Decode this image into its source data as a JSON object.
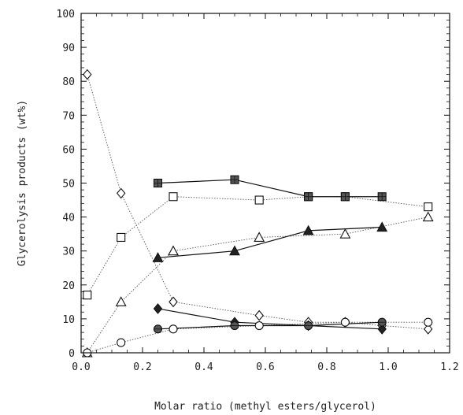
{
  "chart_data": {
    "type": "line",
    "title": "",
    "xlabel": "Molar ratio (methyl esters/glycerol)",
    "ylabel": "Glycerolysis products (wt%)",
    "xlim": [
      0.0,
      1.2
    ],
    "ylim": [
      0,
      100
    ],
    "x_ticks": [
      "0.0",
      "0.2",
      "0.4",
      "0.6",
      "0.8",
      "1.0",
      "1.2"
    ],
    "y_ticks": [
      "0",
      "10",
      "20",
      "30",
      "40",
      "50",
      "60",
      "70",
      "80",
      "90",
      "100"
    ],
    "legend": "none",
    "grid": false,
    "series": [
      {
        "marker": "diamond-open",
        "line": "dotted",
        "x": [
          0.02,
          0.13,
          0.3,
          0.58,
          0.74,
          0.86,
          0.98,
          1.13
        ],
        "y": [
          82,
          47,
          15,
          11,
          9,
          9,
          8,
          7
        ]
      },
      {
        "marker": "square-open",
        "line": "dotted",
        "x": [
          0.02,
          0.13,
          0.3,
          0.58,
          0.74,
          0.86,
          1.13
        ],
        "y": [
          17,
          34,
          46,
          45,
          46,
          46,
          43
        ]
      },
      {
        "marker": "triangle-open",
        "line": "dotted",
        "x": [
          0.02,
          0.13,
          0.3,
          0.58,
          0.86,
          1.13
        ],
        "y": [
          0,
          15,
          30,
          34,
          35,
          40
        ]
      },
      {
        "marker": "circle-open",
        "line": "dotted",
        "x": [
          0.02,
          0.13,
          0.3,
          0.58,
          0.86,
          1.13
        ],
        "y": [
          0,
          3,
          7,
          8,
          9,
          9
        ]
      },
      {
        "marker": "square-filled",
        "line": "solid",
        "x": [
          0.25,
          0.5,
          0.74,
          0.86,
          0.98
        ],
        "y": [
          50,
          51,
          46,
          46,
          46
        ]
      },
      {
        "marker": "triangle-filled",
        "line": "solid",
        "x": [
          0.25,
          0.5,
          0.74,
          0.98
        ],
        "y": [
          28,
          30,
          36,
          37
        ]
      },
      {
        "marker": "diamond-filled",
        "line": "solid",
        "x": [
          0.25,
          0.5,
          0.74,
          0.98
        ],
        "y": [
          13,
          9,
          8,
          7
        ]
      },
      {
        "marker": "circle-filled",
        "line": "solid",
        "x": [
          0.25,
          0.5,
          0.74,
          0.98
        ],
        "y": [
          7,
          8,
          8,
          9
        ]
      }
    ]
  }
}
